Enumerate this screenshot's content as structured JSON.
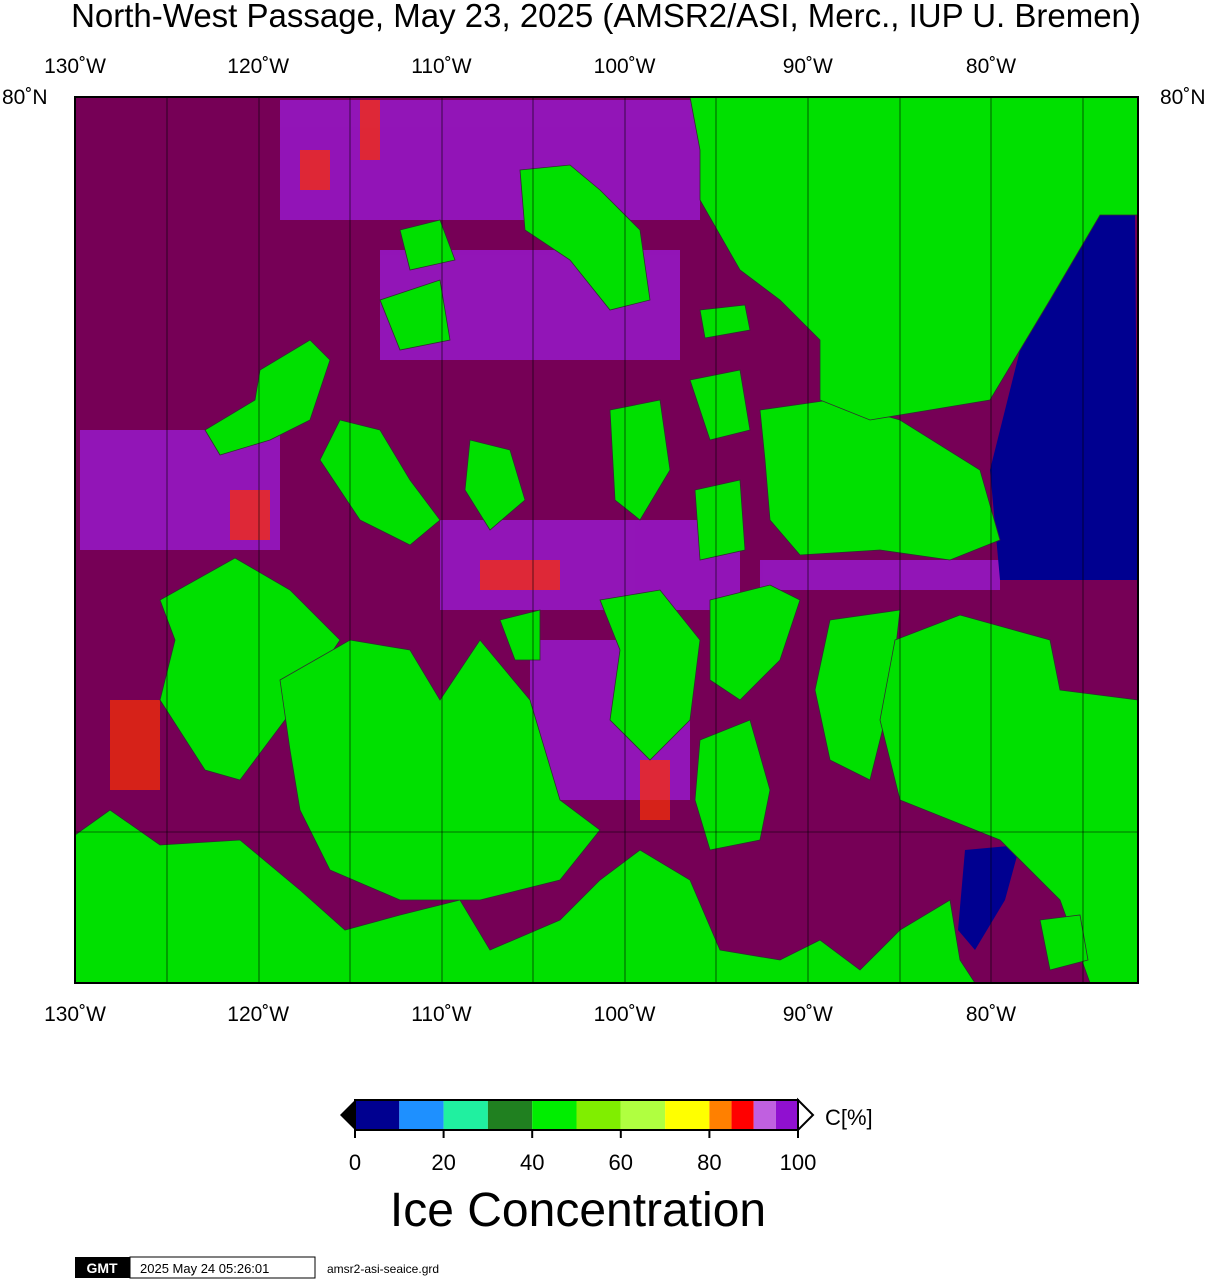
{
  "title": "North-West Passage, May 23, 2025 (AMSR2/ASI, Merc., IUP U. Bremen)",
  "map": {
    "lon_labels": [
      "130˚W",
      "120˚W",
      "110˚W",
      "100˚W",
      "90˚W",
      "80˚W"
    ],
    "lat_label": "80˚N"
  },
  "colorbar": {
    "unit": "C[%]",
    "label": "Ice Concentration",
    "range": [
      0,
      100
    ],
    "ticks": [
      0,
      20,
      40,
      60,
      80,
      100
    ],
    "bins": [
      0,
      10,
      20,
      30,
      40,
      50,
      60,
      70,
      80,
      85,
      90,
      95,
      100
    ],
    "colors": [
      "#000090",
      "#1e90ff",
      "#20f0a0",
      "#208020",
      "#00ee00",
      "#80ee00",
      "#b0ff40",
      "#ffff00",
      "#ff8000",
      "#ff0000",
      "#c060e0",
      "#9010d0"
    ]
  },
  "footer": {
    "logo": "GMT",
    "timestamp": "2025 May 24 05:26:01",
    "file": "amsr2-asi-seaice.grd"
  }
}
